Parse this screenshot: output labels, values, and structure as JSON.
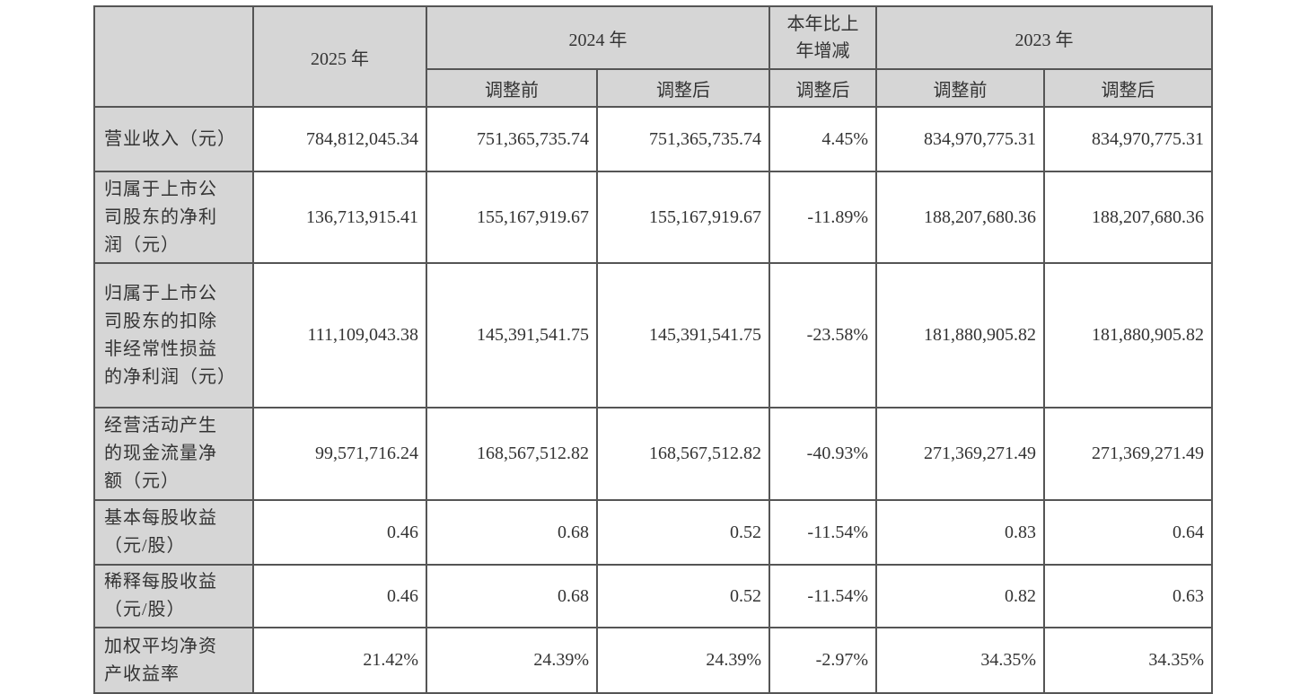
{
  "table": {
    "header": {
      "col_2025": "2025 年",
      "col_2024": "2024 年",
      "col_change": "本年比上年增减",
      "col_2023": "2023 年",
      "sub": [
        "调整前",
        "调整后",
        "调整后",
        "调整前",
        "调整后"
      ]
    },
    "rows": [
      {
        "label": "营业收入（元）",
        "values": [
          "784,812,045.34",
          "751,365,735.74",
          "751,365,735.74",
          "4.45%",
          "834,970,775.31",
          "834,970,775.31"
        ]
      },
      {
        "label": "归属于上市公司股东的净利润（元）",
        "values": [
          "136,713,915.41",
          "155,167,919.67",
          "155,167,919.67",
          "-11.89%",
          "188,207,680.36",
          "188,207,680.36"
        ]
      },
      {
        "label": "归属于上市公司股东的扣除非经常性损益的净利润（元）",
        "values": [
          "111,109,043.38",
          "145,391,541.75",
          "145,391,541.75",
          "-23.58%",
          "181,880,905.82",
          "181,880,905.82"
        ]
      },
      {
        "label": "经营活动产生的现金流量净额（元）",
        "values": [
          "99,571,716.24",
          "168,567,512.82",
          "168,567,512.82",
          "-40.93%",
          "271,369,271.49",
          "271,369,271.49"
        ]
      },
      {
        "label": "基本每股收益（元/股）",
        "values": [
          "0.46",
          "0.68",
          "0.52",
          "-11.54%",
          "0.83",
          "0.64"
        ]
      },
      {
        "label": "稀释每股收益（元/股）",
        "values": [
          "0.46",
          "0.68",
          "0.52",
          "-11.54%",
          "0.82",
          "0.63"
        ]
      },
      {
        "label": "加权平均净资产收益率",
        "values": [
          "21.42%",
          "24.39%",
          "24.39%",
          "-2.97%",
          "34.35%",
          "34.35%"
        ]
      }
    ]
  }
}
